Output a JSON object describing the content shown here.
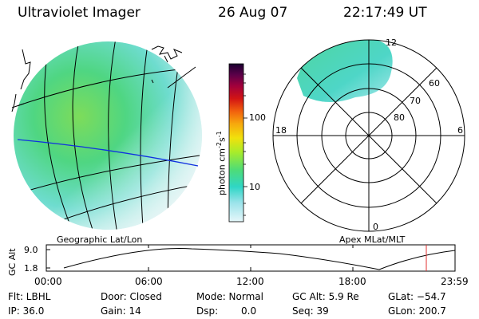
{
  "header": {
    "instrument": "Ultraviolet Imager",
    "date": "26 Aug 07",
    "time": "22:17:49 UT"
  },
  "colorbar": {
    "units_prefix": "photon cm",
    "units_exp1": "-2",
    "units_mid": "s",
    "units_exp2": "-1",
    "ticks": [
      "100",
      "10"
    ],
    "colors": [
      "#e6f7fa",
      "#9be3ea",
      "#2fd6c6",
      "#4fdc76",
      "#a8ec2b",
      "#f1e10c",
      "#f7a80d",
      "#f1600e",
      "#d21414",
      "#a1003c",
      "#5c0049",
      "#1a0030"
    ]
  },
  "geo_map": {
    "label": "Geographic Lat/Lon"
  },
  "polar_plot": {
    "label": "Apex MLat/MLT",
    "mlt_labels": [
      "12",
      "18",
      "6",
      "0"
    ],
    "mlat_labels": [
      "60",
      "70",
      "80"
    ]
  },
  "altitude_strip": {
    "axis_label": "GC Alt",
    "y_ticks": [
      "9.0",
      "1.8"
    ],
    "x_ticks": [
      "00:00",
      "06:00",
      "12:00",
      "18:00",
      "23:59"
    ],
    "current_time_marker_color": "#e03030"
  },
  "footer": {
    "filter": "Flt: LBHL",
    "ip": "IP: 36.0",
    "door": "Door: Closed",
    "gain": "Gain: 14",
    "mode": "Mode: Normal",
    "dsp_label": "Dsp:",
    "dsp_value": "0.0",
    "gc_alt": "GC Alt: 5.9 Re",
    "seq": "Seq: 39",
    "glat": "GLat: −54.7",
    "glon": "GLon: 200.7"
  }
}
